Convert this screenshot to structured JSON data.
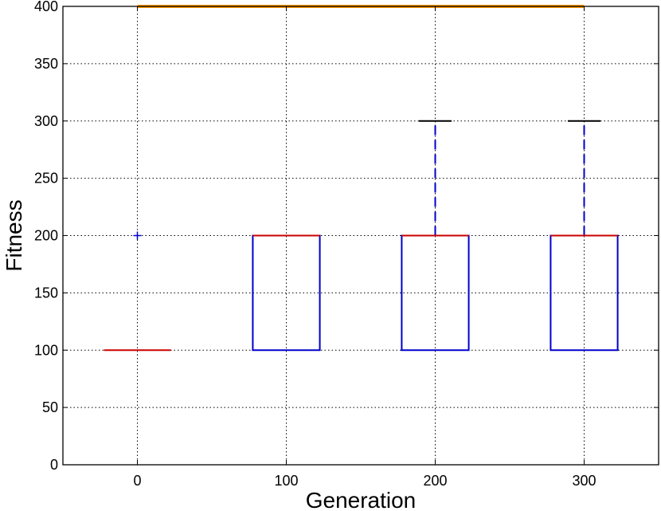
{
  "chart_data": {
    "type": "box",
    "title": "",
    "xlabel": "Generation",
    "ylabel": "Fitness",
    "xlim": [
      -50,
      350
    ],
    "ylim": [
      0,
      400
    ],
    "xticks": [
      "0",
      "100",
      "200",
      "300"
    ],
    "yticks": [
      "0",
      "50",
      "100",
      "150",
      "200",
      "250",
      "300",
      "350",
      "400"
    ],
    "grid": true,
    "colors": {
      "box": "#0000cc",
      "median": "#cc0000",
      "outlier": "#0000cc",
      "reference": "#ff9900"
    },
    "boxes": [
      {
        "x": 0,
        "whisker_low": 100,
        "q1": 100,
        "median": 100,
        "q3": 100,
        "whisker_high": 100,
        "outliers": [
          200
        ]
      },
      {
        "x": 100,
        "whisker_low": 100,
        "q1": 100,
        "median": 200,
        "q3": 200,
        "whisker_high": 200,
        "outliers": []
      },
      {
        "x": 200,
        "whisker_low": 100,
        "q1": 100,
        "median": 200,
        "q3": 200,
        "whisker_high": 300,
        "outliers": []
      },
      {
        "x": 300,
        "whisker_low": 100,
        "q1": 100,
        "median": 200,
        "q3": 200,
        "whisker_high": 300,
        "outliers": []
      }
    ],
    "reference_line": {
      "y": 400,
      "x_start": 0,
      "x_end": 300
    }
  }
}
